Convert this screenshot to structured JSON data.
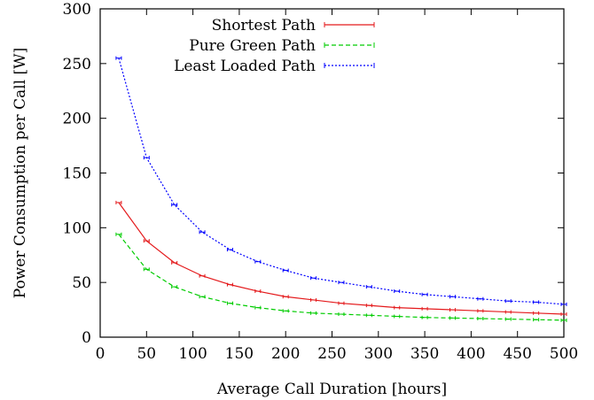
{
  "chart_data": {
    "type": "line",
    "title": "",
    "xlabel": "Average Call Duration [hours]",
    "ylabel": "Power Consumption per Call [W]",
    "xlim": [
      0,
      500
    ],
    "ylim": [
      0,
      300
    ],
    "xticks": [
      0,
      50,
      100,
      150,
      200,
      250,
      300,
      350,
      400,
      450,
      500
    ],
    "yticks": [
      0,
      50,
      100,
      150,
      200,
      250,
      300
    ],
    "grid": false,
    "legend_position": "top-right",
    "x": [
      20,
      50,
      80,
      110,
      140,
      170,
      200,
      230,
      260,
      290,
      320,
      350,
      380,
      410,
      440,
      470,
      500
    ],
    "series": [
      {
        "name": "Shortest Path",
        "color": "#e41a1c",
        "dash": "solid",
        "values": [
          123,
          88,
          68,
          56,
          48,
          42,
          37,
          34,
          31,
          29,
          27,
          26,
          25,
          24,
          23,
          22,
          21
        ]
      },
      {
        "name": "Pure Green Path",
        "color": "#00cc00",
        "dash": "dashed",
        "values": [
          94,
          62,
          46,
          37,
          31,
          27,
          24,
          22,
          21,
          20,
          19,
          18,
          17.5,
          17,
          16.5,
          16,
          15.5
        ]
      },
      {
        "name": "Least Loaded Path",
        "color": "#0000ff",
        "dash": "dotted",
        "values": [
          255,
          164,
          121,
          96,
          80,
          69,
          61,
          54,
          50,
          46,
          42,
          39,
          37,
          35,
          33,
          32,
          30
        ]
      }
    ]
  }
}
